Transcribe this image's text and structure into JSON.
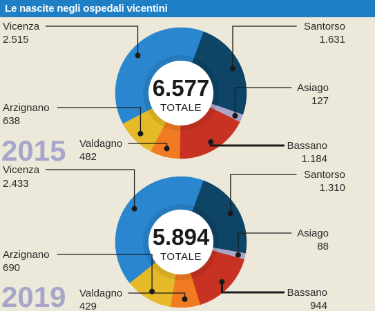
{
  "title": "Le nascite negli ospedali vicentini",
  "colors": {
    "Vicenza": "#2a86cf",
    "Santorso": "#0e4566",
    "Asiago": "#a9a6c8",
    "Bassano": "#c83222",
    "Valdagno": "#f07b22",
    "Arzignano": "#e5b928"
  },
  "chart_data": [
    {
      "type": "pie",
      "year": "2015",
      "total": "6.577",
      "total_label": "TOTALE",
      "slices": [
        {
          "name": "Vicenza",
          "value": 2515,
          "label": "2.515"
        },
        {
          "name": "Santorso",
          "value": 1631,
          "label": "1.631"
        },
        {
          "name": "Asiago",
          "value": 127,
          "label": "127"
        },
        {
          "name": "Bassano",
          "value": 1184,
          "label": "1.184"
        },
        {
          "name": "Valdagno",
          "value": 482,
          "label": "482"
        },
        {
          "name": "Arzignano",
          "value": 638,
          "label": "638"
        }
      ]
    },
    {
      "type": "pie",
      "year": "2019",
      "total": "5.894",
      "total_label": "TOTALE",
      "slices": [
        {
          "name": "Vicenza",
          "value": 2433,
          "label": "2.433"
        },
        {
          "name": "Santorso",
          "value": 1310,
          "label": "1.310"
        },
        {
          "name": "Asiago",
          "value": 88,
          "label": "88"
        },
        {
          "name": "Bassano",
          "value": 944,
          "label": "944"
        },
        {
          "name": "Valdagno",
          "value": 429,
          "label": "429"
        },
        {
          "name": "Arzignano",
          "value": 690,
          "label": "690"
        }
      ]
    }
  ]
}
